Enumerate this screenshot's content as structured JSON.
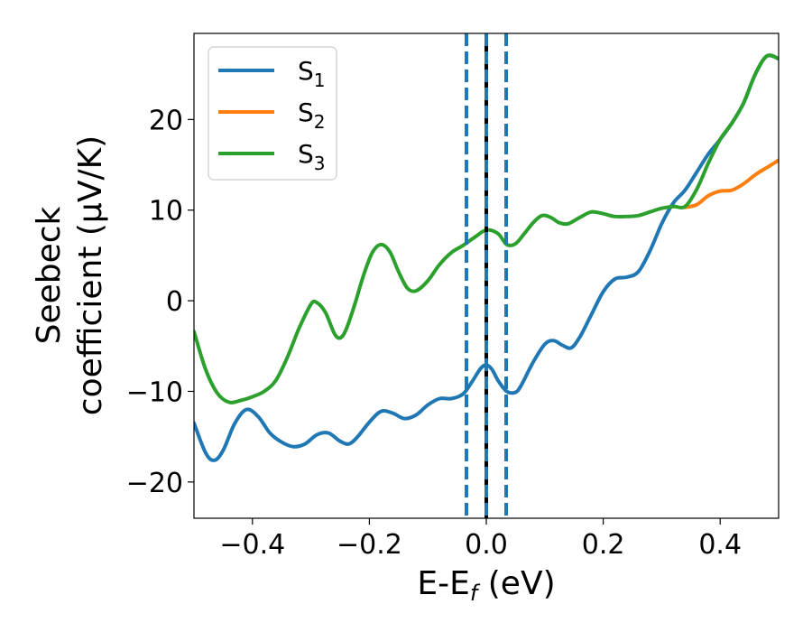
{
  "chart_data": {
    "type": "line",
    "xlabel": "E-E_f (eV)",
    "ylabel_line1": "Seebeck",
    "ylabel_line2": "coefficient  (μV/K)",
    "xlim": [
      -0.5,
      0.5
    ],
    "ylim": [
      -24,
      29.5
    ],
    "xticks": [
      -0.4,
      -0.2,
      0.0,
      0.2,
      0.4
    ],
    "xtick_labels": [
      "−0.4",
      "−0.2",
      "0.0",
      "0.2",
      "0.4"
    ],
    "yticks": [
      -20,
      -10,
      0,
      10,
      20
    ],
    "ytick_labels": [
      "−20",
      "−10",
      "0",
      "10",
      "20"
    ],
    "grid": false,
    "legend_position": "top-left",
    "vertical_lines": [
      {
        "x": -0.034,
        "style": "dashed",
        "color": "#1f77b4"
      },
      {
        "x": 0.0,
        "style": "solid",
        "color": "#000000"
      },
      {
        "x": 0.0,
        "style": "dashed",
        "color": "#1f77b4"
      },
      {
        "x": 0.034,
        "style": "dashed",
        "color": "#1f77b4"
      }
    ],
    "series": [
      {
        "name": "S",
        "sub": "1",
        "color": "#1f77b4",
        "points": [
          [
            -0.5,
            -13.5
          ],
          [
            -0.48,
            -16.8
          ],
          [
            -0.465,
            -17.6
          ],
          [
            -0.45,
            -16.5
          ],
          [
            -0.43,
            -13.5
          ],
          [
            -0.41,
            -12.0
          ],
          [
            -0.39,
            -12.8
          ],
          [
            -0.37,
            -14.6
          ],
          [
            -0.35,
            -15.6
          ],
          [
            -0.33,
            -16.1
          ],
          [
            -0.31,
            -15.8
          ],
          [
            -0.29,
            -14.8
          ],
          [
            -0.27,
            -14.6
          ],
          [
            -0.25,
            -15.5
          ],
          [
            -0.235,
            -15.8
          ],
          [
            -0.22,
            -15.0
          ],
          [
            -0.2,
            -13.4
          ],
          [
            -0.18,
            -12.2
          ],
          [
            -0.16,
            -12.4
          ],
          [
            -0.14,
            -13.0
          ],
          [
            -0.12,
            -12.6
          ],
          [
            -0.1,
            -11.5
          ],
          [
            -0.08,
            -10.8
          ],
          [
            -0.06,
            -10.8
          ],
          [
            -0.04,
            -10.3
          ],
          [
            -0.025,
            -9.0
          ],
          [
            -0.01,
            -7.5
          ],
          [
            0.0,
            -7.1
          ],
          [
            0.01,
            -7.6
          ],
          [
            0.02,
            -8.8
          ],
          [
            0.035,
            -10.0
          ],
          [
            0.05,
            -10.1
          ],
          [
            0.06,
            -9.3
          ],
          [
            0.08,
            -6.8
          ],
          [
            0.1,
            -4.8
          ],
          [
            0.115,
            -4.4
          ],
          [
            0.13,
            -4.9
          ],
          [
            0.145,
            -5.2
          ],
          [
            0.16,
            -4.0
          ],
          [
            0.18,
            -1.5
          ],
          [
            0.2,
            1.0
          ],
          [
            0.22,
            2.4
          ],
          [
            0.24,
            2.6
          ],
          [
            0.26,
            3.2
          ],
          [
            0.28,
            5.5
          ],
          [
            0.3,
            8.5
          ],
          [
            0.32,
            10.8
          ],
          [
            0.34,
            12.2
          ],
          [
            0.36,
            14.2
          ],
          [
            0.38,
            16.2
          ],
          [
            0.4,
            17.8
          ],
          [
            0.42,
            19.6
          ],
          [
            0.44,
            21.8
          ],
          [
            0.46,
            25.0
          ],
          [
            0.48,
            27.0
          ],
          [
            0.5,
            26.7
          ]
        ]
      },
      {
        "name": "S",
        "sub": "2",
        "color": "#ff7f0e",
        "points": [
          [
            0.34,
            10.3
          ],
          [
            0.36,
            10.6
          ],
          [
            0.38,
            11.6
          ],
          [
            0.4,
            12.1
          ],
          [
            0.42,
            12.2
          ],
          [
            0.44,
            12.9
          ],
          [
            0.46,
            13.9
          ],
          [
            0.48,
            14.7
          ],
          [
            0.5,
            15.5
          ]
        ]
      },
      {
        "name": "S",
        "sub": "3",
        "color": "#2ca02c",
        "points": [
          [
            -0.5,
            -3.4
          ],
          [
            -0.48,
            -7.6
          ],
          [
            -0.46,
            -10.2
          ],
          [
            -0.44,
            -11.2
          ],
          [
            -0.42,
            -11.0
          ],
          [
            -0.4,
            -10.6
          ],
          [
            -0.38,
            -10.0
          ],
          [
            -0.36,
            -8.8
          ],
          [
            -0.34,
            -6.2
          ],
          [
            -0.32,
            -3.0
          ],
          [
            -0.3,
            -0.4
          ],
          [
            -0.29,
            -0.2
          ],
          [
            -0.275,
            -1.3
          ],
          [
            -0.26,
            -3.6
          ],
          [
            -0.25,
            -4.1
          ],
          [
            -0.24,
            -3.2
          ],
          [
            -0.225,
            -0.4
          ],
          [
            -0.21,
            2.8
          ],
          [
            -0.195,
            5.3
          ],
          [
            -0.18,
            6.2
          ],
          [
            -0.165,
            5.4
          ],
          [
            -0.15,
            3.2
          ],
          [
            -0.135,
            1.4
          ],
          [
            -0.12,
            1.1
          ],
          [
            -0.1,
            2.2
          ],
          [
            -0.08,
            4.0
          ],
          [
            -0.06,
            5.3
          ],
          [
            -0.04,
            6.1
          ],
          [
            -0.02,
            7.0
          ],
          [
            0.0,
            7.8
          ],
          [
            0.02,
            7.4
          ],
          [
            0.035,
            6.2
          ],
          [
            0.05,
            6.3
          ],
          [
            0.065,
            7.4
          ],
          [
            0.08,
            8.6
          ],
          [
            0.095,
            9.4
          ],
          [
            0.11,
            9.2
          ],
          [
            0.125,
            8.6
          ],
          [
            0.14,
            8.5
          ],
          [
            0.16,
            9.2
          ],
          [
            0.18,
            9.8
          ],
          [
            0.2,
            9.6
          ],
          [
            0.22,
            9.3
          ],
          [
            0.24,
            9.3
          ],
          [
            0.26,
            9.4
          ],
          [
            0.28,
            9.8
          ],
          [
            0.3,
            10.2
          ],
          [
            0.32,
            10.4
          ],
          [
            0.34,
            10.4
          ],
          [
            0.36,
            12.3
          ],
          [
            0.38,
            15.2
          ],
          [
            0.4,
            17.8
          ],
          [
            0.42,
            19.6
          ],
          [
            0.44,
            21.8
          ],
          [
            0.46,
            25.0
          ],
          [
            0.48,
            27.0
          ],
          [
            0.5,
            26.7
          ]
        ]
      }
    ]
  }
}
